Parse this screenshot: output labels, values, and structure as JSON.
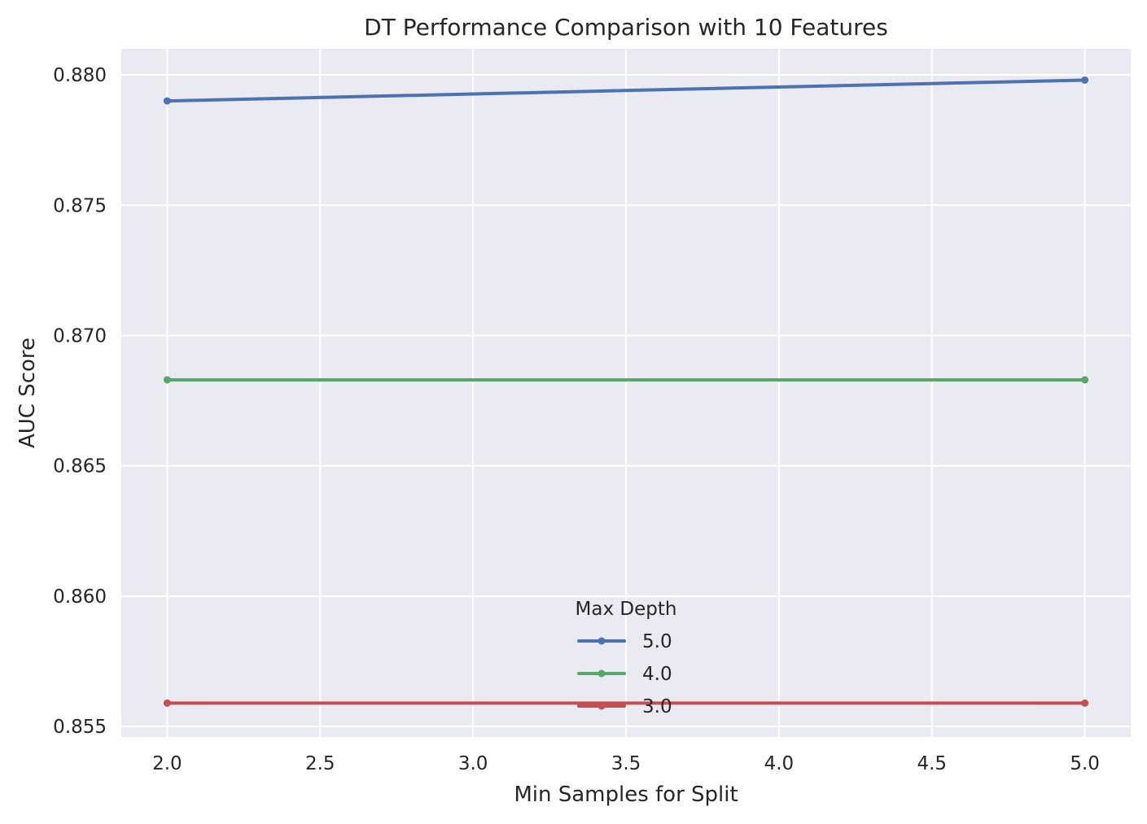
{
  "chart_data": {
    "type": "line",
    "title": "DT Performance Comparison with 10 Features",
    "xlabel": "Min Samples for Split",
    "ylabel": "AUC Score",
    "x": [
      2.0,
      5.0
    ],
    "xlim": [
      1.85,
      5.15
    ],
    "ylim": [
      0.8546,
      0.881
    ],
    "x_ticks": [
      {
        "value": 2.0,
        "label": "2.0"
      },
      {
        "value": 2.5,
        "label": "2.5"
      },
      {
        "value": 3.0,
        "label": "3.0"
      },
      {
        "value": 3.5,
        "label": "3.5"
      },
      {
        "value": 4.0,
        "label": "4.0"
      },
      {
        "value": 4.5,
        "label": "4.5"
      },
      {
        "value": 5.0,
        "label": "5.0"
      }
    ],
    "y_ticks": [
      {
        "value": 0.855,
        "label": "0.855"
      },
      {
        "value": 0.86,
        "label": "0.860"
      },
      {
        "value": 0.865,
        "label": "0.865"
      },
      {
        "value": 0.87,
        "label": "0.870"
      },
      {
        "value": 0.875,
        "label": "0.875"
      },
      {
        "value": 0.88,
        "label": "0.880"
      }
    ],
    "grid": true,
    "legend": {
      "title": "Max Depth",
      "placement": "lower-center"
    },
    "series": [
      {
        "name": "5.0",
        "color": "#4c72b0",
        "values": [
          0.879,
          0.8798
        ]
      },
      {
        "name": "4.0",
        "color": "#55a868",
        "values": [
          0.8683,
          0.8683
        ]
      },
      {
        "name": "3.0",
        "color": "#c44e52",
        "values": [
          0.8559,
          0.8559
        ]
      }
    ]
  }
}
